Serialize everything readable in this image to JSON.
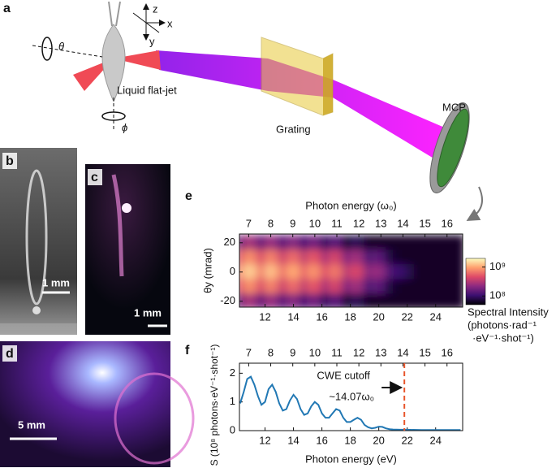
{
  "panel_labels": [
    "a",
    "b",
    "c",
    "d",
    "e",
    "f"
  ],
  "diagram": {
    "axes": [
      "z",
      "x",
      "y"
    ],
    "theta": "θ",
    "phi": "ϕ",
    "jet": "Liquid flat-jet",
    "grating": "Grating",
    "detector": "MCP"
  },
  "photos": {
    "b_scale": "1 mm",
    "c_scale": "1 mm",
    "d_scale": "5 mm"
  },
  "chart_data": [
    {
      "type": "heatmap",
      "x2label": "Photon energy (ω₀)",
      "ylabel": "θy (mrad)",
      "x": [
        10.25,
        10.75,
        11.25,
        11.75,
        12.25,
        12.75,
        13.25,
        13.75,
        14.25,
        14.75,
        15.25,
        15.75,
        16.25,
        16.75,
        17.25,
        17.75,
        18.25,
        18.75,
        19.25,
        19.75,
        20.25,
        20.75,
        21.25,
        21.75,
        22.25,
        22.75,
        23.25,
        23.75,
        24.25,
        24.75,
        25.25,
        25.75
      ],
      "y": [
        20,
        10,
        0,
        -10,
        -20
      ],
      "z": [
        [
          160000000.0,
          280000000.0,
          250000000.0,
          140000000.0,
          250000000.0,
          220000000.0,
          130000000.0,
          200000000.0,
          200000000.0,
          110000000.0,
          180000000.0,
          160000000.0,
          90000000.0,
          140000000.0,
          130000000.0,
          64000000.0,
          90000000.0,
          80000000.0,
          63000000.0,
          63000000.0,
          63000000.0,
          63000000.0,
          63000000.0,
          63000000.0,
          63000000.0,
          63000000.0,
          63000000.0,
          63000000.0,
          63000000.0,
          63000000.0,
          63000000.0,
          63000000.0
        ],
        [
          470000000.0,
          840000000.0,
          760000000.0,
          430000000.0,
          760000000.0,
          670000000.0,
          380000000.0,
          600000000.0,
          600000000.0,
          340000000.0,
          530000000.0,
          470000000.0,
          270000000.0,
          430000000.0,
          380000000.0,
          190000000.0,
          270000000.0,
          240000000.0,
          120000000.0,
          150000000.0,
          130000000.0,
          78000000.0,
          66000000.0,
          63000000.0,
          63000000.0,
          63000000.0,
          63000000.0,
          63000000.0,
          63000000.0,
          63000000.0,
          63000000.0,
          63000000.0
        ],
        [
          790000000.0,
          1400000000.0,
          1260000000.0,
          710000000.0,
          1260000000.0,
          1120000000.0,
          630000000.0,
          1000000000.0,
          1000000000.0,
          560000000.0,
          890000000.0,
          790000000.0,
          450000000.0,
          710000000.0,
          630000000.0,
          320000000.0,
          450000000.0,
          400000000.0,
          200000000.0,
          250000000.0,
          220000000.0,
          130000000.0,
          110000000.0,
          100000000.0,
          80000000.0,
          63000000.0,
          63000000.0,
          63000000.0,
          63000000.0,
          63000000.0,
          63000000.0,
          63000000.0
        ],
        [
          470000000.0,
          840000000.0,
          760000000.0,
          430000000.0,
          760000000.0,
          670000000.0,
          380000000.0,
          600000000.0,
          600000000.0,
          340000000.0,
          530000000.0,
          470000000.0,
          270000000.0,
          430000000.0,
          380000000.0,
          190000000.0,
          270000000.0,
          240000000.0,
          120000000.0,
          150000000.0,
          130000000.0,
          78000000.0,
          66000000.0,
          63000000.0,
          63000000.0,
          63000000.0,
          63000000.0,
          63000000.0,
          63000000.0,
          63000000.0,
          63000000.0,
          63000000.0
        ],
        [
          160000000.0,
          280000000.0,
          250000000.0,
          140000000.0,
          250000000.0,
          220000000.0,
          130000000.0,
          200000000.0,
          200000000.0,
          110000000.0,
          180000000.0,
          160000000.0,
          90000000.0,
          140000000.0,
          130000000.0,
          64000000.0,
          90000000.0,
          80000000.0,
          63000000.0,
          63000000.0,
          63000000.0,
          63000000.0,
          63000000.0,
          63000000.0,
          63000000.0,
          63000000.0,
          63000000.0,
          63000000.0,
          63000000.0,
          63000000.0,
          63000000.0,
          63000000.0
        ]
      ],
      "xlim": [
        10.2,
        25.9
      ],
      "ylim": [
        -24,
        26
      ],
      "xticks": [
        12,
        14,
        16,
        18,
        20,
        22,
        24
      ],
      "x2lim": [
        6.58,
        16.71
      ],
      "x2ticks": [
        7,
        8,
        9,
        10,
        11,
        12,
        13,
        14,
        15,
        16
      ],
      "yticks": [
        20,
        0,
        -20
      ],
      "colormap": [
        "#000004",
        "#3b0f70",
        "#8c2981",
        "#de4968",
        "#fe9f6d",
        "#fcfdbf"
      ],
      "colorbar": {
        "label": [
          "Spectral Intensity",
          "(photons·rad⁻¹",
          "·eV⁻¹·shot⁻¹)"
        ],
        "log": true,
        "lim": [
          50000000.0,
          2000000000.0
        ],
        "ticks": [
          {
            "value": 1000000000,
            "label": "10⁹"
          },
          {
            "value": 100000000,
            "label": "10⁸"
          }
        ]
      }
    },
    {
      "type": "line",
      "xlabel": "Photon energy (eV)",
      "ylabel": "S (10⁸ photons·eV⁻¹·shot⁻¹)",
      "color": "#2178b4",
      "x": [
        10.25,
        10.5,
        10.75,
        11.0,
        11.25,
        11.5,
        11.75,
        12.0,
        12.25,
        12.5,
        12.75,
        13.0,
        13.25,
        13.5,
        13.75,
        14.0,
        14.25,
        14.5,
        14.75,
        15.0,
        15.25,
        15.5,
        15.75,
        16.0,
        16.25,
        16.5,
        16.75,
        17.0,
        17.25,
        17.5,
        17.75,
        18.0,
        18.25,
        18.5,
        18.75,
        19.0,
        19.25,
        19.5,
        19.75,
        20.0,
        20.25,
        20.5,
        20.75,
        21.0,
        21.5,
        22.0,
        23.0,
        24.0,
        25.0,
        25.75
      ],
      "values": [
        0.95,
        1.35,
        1.8,
        1.88,
        1.6,
        1.2,
        0.9,
        1.0,
        1.45,
        1.6,
        1.35,
        0.95,
        0.7,
        0.75,
        1.05,
        1.25,
        1.1,
        0.75,
        0.55,
        0.6,
        0.85,
        1.0,
        0.9,
        0.6,
        0.45,
        0.45,
        0.6,
        0.75,
        0.7,
        0.45,
        0.3,
        0.3,
        0.38,
        0.45,
        0.38,
        0.2,
        0.12,
        0.08,
        0.1,
        0.14,
        0.13,
        0.08,
        0.05,
        0.04,
        0.03,
        0.03,
        0.02,
        0.02,
        0.02,
        0.02
      ],
      "xlim": [
        10.2,
        25.9
      ],
      "ylim": [
        0,
        2.35
      ],
      "xticks": [
        12,
        14,
        16,
        18,
        20,
        22,
        24
      ],
      "yticks": [
        0,
        1,
        2
      ],
      "x2lim": [
        6.58,
        16.71
      ],
      "x2ticks": [
        7,
        8,
        9,
        10,
        11,
        12,
        13,
        14,
        15,
        16
      ],
      "annotation": {
        "text": [
          "CWE cutoff",
          "~14.07ω₀"
        ],
        "x": 21.8,
        "color": "#e8552b"
      }
    }
  ]
}
